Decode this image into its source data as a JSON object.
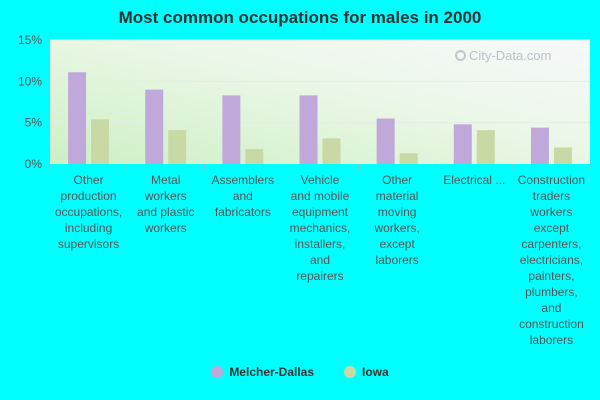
{
  "chart_data": {
    "type": "bar",
    "title": "Most common occupations for males in 2000",
    "xlabel": "",
    "ylabel": "",
    "ylim": [
      0,
      15
    ],
    "y_ticks": [
      0,
      5,
      10,
      15
    ],
    "y_tick_labels": [
      "0%",
      "5%",
      "10%",
      "15%"
    ],
    "grid": true,
    "legend_position": "bottom",
    "categories": [
      "Other production occupations, including supervisors",
      "Metal workers and plastic workers",
      "Assemblers and fabricators",
      "Vehicle and mobile equipment mechanics, installers, and repairers",
      "Other material moving workers, except laborers",
      "Electrical ...",
      "Construction traders workers except carpenters, electricians, painters, plumbers, and construction laborers"
    ],
    "series": [
      {
        "name": "Melcher-Dallas",
        "color": "#c0a9da",
        "values": [
          11.1,
          9.0,
          8.3,
          8.3,
          5.5,
          4.8,
          4.4
        ]
      },
      {
        "name": "Iowa",
        "color": "#c8d9a6",
        "values": [
          5.4,
          4.1,
          1.8,
          3.1,
          1.3,
          4.1,
          2.0
        ]
      }
    ]
  },
  "watermark": {
    "text": "City-Data.com",
    "icon": "magnifier-icon"
  }
}
